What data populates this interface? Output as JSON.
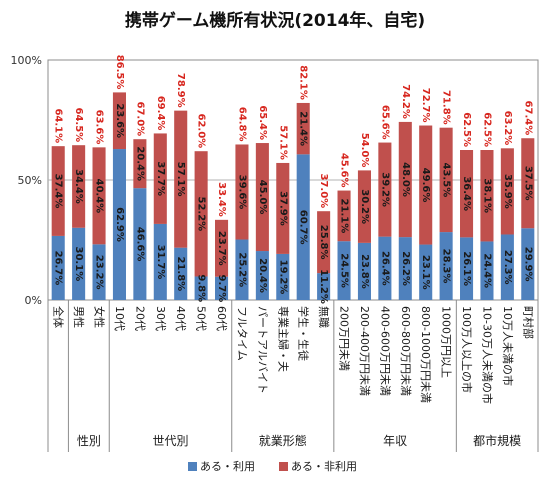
{
  "chart_data": {
    "type": "bar",
    "stacked": true,
    "title": "携帯ゲーム機所有状況(2014年、自宅)",
    "ylim": [
      0,
      100
    ],
    "yticks": [
      "0%",
      "50%",
      "100%"
    ],
    "grid": true,
    "legend_position": "bottom",
    "categories": [
      "全体",
      "男性",
      "女性",
      "10代",
      "20代",
      "30代",
      "40代",
      "50代",
      "60代",
      "フルタイム",
      "パートアルバイト",
      "専業主婦・夫",
      "学生・生徒",
      "無職",
      "200万円未満",
      "200-400万円未満",
      "400-600万円未満",
      "600-800万円未満",
      "800-1000万円未満",
      "1000万円以上",
      "100万人以上の市",
      "10-30万人未満の市",
      "10万人未満の市",
      "町村部"
    ],
    "groups": [
      {
        "label": "性別",
        "start": 1,
        "end": 2
      },
      {
        "label": "世代別",
        "start": 3,
        "end": 8
      },
      {
        "label": "就業形態",
        "start": 9,
        "end": 13
      },
      {
        "label": "年収",
        "start": 14,
        "end": 19
      },
      {
        "label": "都市規模",
        "start": 20,
        "end": 23
      }
    ],
    "series": [
      {
        "name": "ある・利用",
        "color": "#4f81bd",
        "values": [
          26.7,
          30.1,
          23.2,
          62.9,
          46.6,
          31.7,
          21.8,
          9.8,
          9.7,
          25.2,
          20.4,
          19.2,
          60.7,
          11.2,
          24.5,
          23.8,
          26.4,
          26.2,
          23.1,
          28.3,
          26.1,
          24.4,
          27.3,
          29.9
        ],
        "labels": [
          "26.7%",
          "30.1%",
          "23.2%",
          "62.9%",
          "46.6%",
          "31.7%",
          "21.8%",
          "9.8%",
          "9.7%",
          "25.2%",
          "20.4%",
          "19.2%",
          "60.7%",
          "11.2%",
          "24.5%",
          "23.8%",
          "26.4%",
          "26.2%",
          "23.1%",
          "28.3%",
          "26.1%",
          "24.4%",
          "27.3%",
          "29.9%"
        ]
      },
      {
        "name": "ある・非利用",
        "color": "#c0504d",
        "values": [
          37.4,
          34.4,
          40.4,
          23.6,
          20.4,
          37.7,
          57.1,
          52.2,
          23.7,
          39.6,
          45.0,
          37.9,
          21.4,
          25.8,
          21.1,
          30.2,
          39.2,
          48.0,
          49.6,
          43.5,
          36.4,
          38.1,
          35.9,
          37.5
        ],
        "labels": [
          "37.4%",
          "34.4%",
          "40.4%",
          "23.6%",
          "20.4%",
          "37.7%",
          "57.1%",
          "52.2%",
          "23.7%",
          "39.6%",
          "45.0%",
          "37.9%",
          "21.4%",
          "25.8%",
          "21.1%",
          "30.2%",
          "39.2%",
          "48.0%",
          "49.6%",
          "43.5%",
          "36.4%",
          "38.1%",
          "35.9%",
          "37.5%"
        ]
      }
    ],
    "totals": [
      64.1,
      64.5,
      63.6,
      86.5,
      67.0,
      69.4,
      78.9,
      62.0,
      33.4,
      64.8,
      65.4,
      57.1,
      82.1,
      37.0,
      45.6,
      54.0,
      65.6,
      74.2,
      72.7,
      71.8,
      62.5,
      62.5,
      63.2,
      67.4
    ],
    "total_labels": [
      "64.1%",
      "64.5%",
      "63.6%",
      "86.5%",
      "67.0%",
      "69.4%",
      "78.9%",
      "62.0%",
      "33.4%",
      "64.8%",
      "65.4%",
      "57.1%",
      "82.1%",
      "37.0%",
      "45.6%",
      "54.0%",
      "65.6%",
      "74.2%",
      "72.7%",
      "71.8%",
      "62.5%",
      "62.5%",
      "63.2%",
      "67.4%"
    ],
    "total_label_color": "#d7261e"
  }
}
